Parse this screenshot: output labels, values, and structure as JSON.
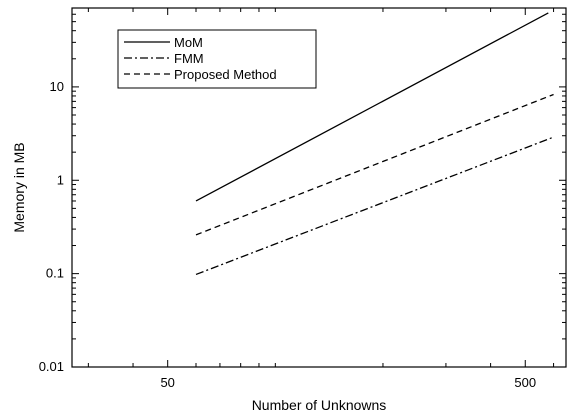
{
  "chart_data": {
    "type": "line",
    "xlabel": "Number of Unknowns",
    "ylabel": "Memory in MB",
    "x_scale": "log",
    "y_scale": "log",
    "xlim": [
      27,
      650
    ],
    "ylim": [
      0.01,
      70
    ],
    "x_ticks": [
      50,
      500
    ],
    "x_tick_labels": [
      "50",
      "500"
    ],
    "y_ticks": [
      0.01,
      0.1,
      1,
      10
    ],
    "y_tick_labels": [
      "0.01",
      "0.1",
      "1",
      "10"
    ],
    "grid": false,
    "legend_position": "top-left",
    "series": [
      {
        "name": "MoM",
        "line_style": "solid",
        "x": [
          60,
          580
        ],
        "y": [
          0.6,
          62
        ]
      },
      {
        "name": "FMM",
        "line_style": "dash-dot",
        "x": [
          60,
          600
        ],
        "y": [
          0.098,
          2.9
        ]
      },
      {
        "name": "Proposed Method",
        "line_style": "dashed",
        "x": [
          60,
          600
        ],
        "y": [
          0.26,
          8.3
        ]
      }
    ]
  }
}
